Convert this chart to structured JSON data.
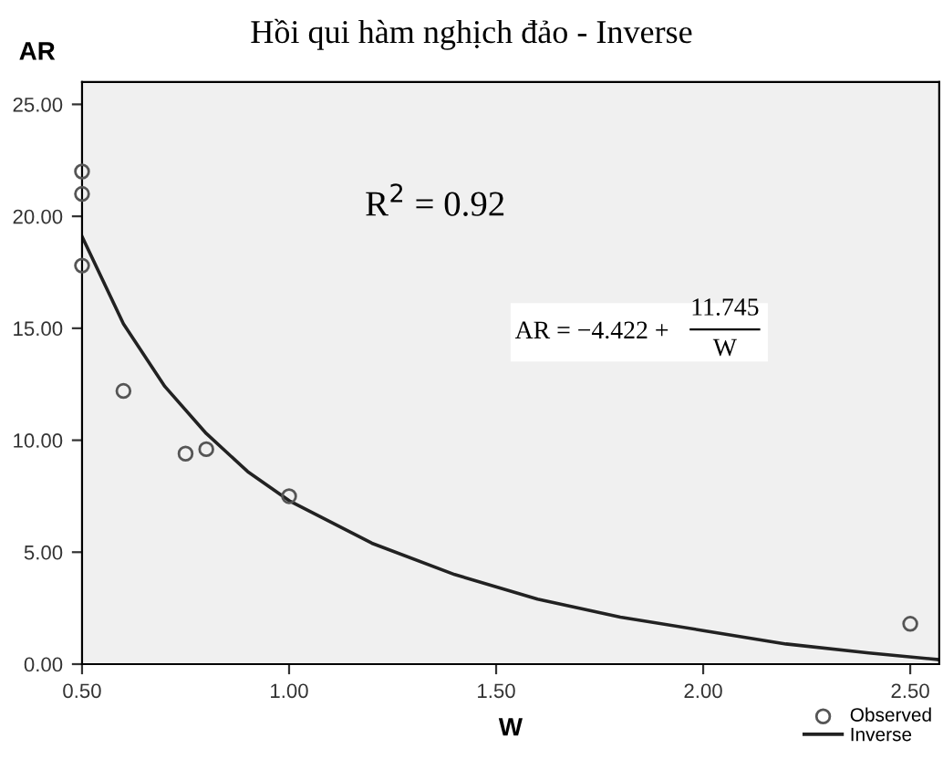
{
  "chart_data": {
    "type": "scatter",
    "title": "Hồi qui hàm nghịch đảo - Inverse",
    "xlabel": "W",
    "ylabel": "AR",
    "series": [
      {
        "name": "Observed",
        "color": "#555555",
        "marker": "circle",
        "x": [
          0.5,
          0.5,
          0.5,
          0.6,
          0.75,
          0.8,
          1.0,
          2.5
        ],
        "values": [
          22.0,
          21.0,
          17.8,
          12.2,
          9.4,
          9.6,
          7.5,
          1.8
        ]
      },
      {
        "name": "Inverse",
        "type": "line",
        "color": "#222222",
        "marker": "none",
        "line_style": "solid",
        "x": [
          0.5,
          0.6,
          0.7,
          0.8,
          0.9,
          1.0,
          1.2,
          1.4,
          1.6,
          1.8,
          2.0,
          2.2,
          2.4,
          2.57
        ],
        "values": [
          19.1,
          15.2,
          12.4,
          10.3,
          8.6,
          7.3,
          5.4,
          4.0,
          2.9,
          2.1,
          1.5,
          0.9,
          0.5,
          0.2
        ]
      }
    ],
    "annotations": [
      "R$^{2}$ = 0.92",
      "AR = −4.422 +",
      "11.745",
      "W"
    ],
    "xlim": [
      0.5,
      2.57
    ],
    "ylim": [
      0,
      26
    ],
    "xticks": [
      {
        "value": 0.5,
        "label": "0.50"
      },
      {
        "value": 1.0,
        "label": "1.00"
      },
      {
        "value": 1.5,
        "label": "1.50"
      },
      {
        "value": 2.0,
        "label": "2.00"
      },
      {
        "value": 2.5,
        "label": "2.50"
      }
    ],
    "yticks": [
      {
        "value": 0,
        "label": "0.00"
      },
      {
        "value": 5,
        "label": "5.00"
      },
      {
        "value": 10,
        "label": "10.00"
      },
      {
        "value": 15,
        "label": "15.00"
      },
      {
        "value": 20,
        "label": "20.00"
      },
      {
        "value": 25,
        "label": "25.00"
      }
    ],
    "grid": false,
    "legend": "bottom right"
  }
}
